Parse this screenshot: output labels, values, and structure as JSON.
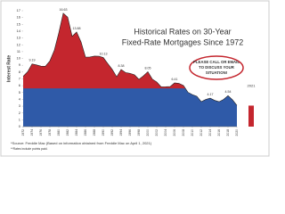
{
  "chart_data": {
    "type": "area",
    "title_lines": [
      "Historical Rates on 30-Year",
      "Fixed-Rate Mortgages Since 1972"
    ],
    "y_label": "Interest Rate",
    "annotation_lines": [
      "PLEASE CALL OR EMAIL",
      "TO DISCUSS YOUR",
      "SITUATION!"
    ],
    "notes": [
      "*Source: Freddie Mac (Based on information obtained from Freddie Mac on April 1, 2021)",
      "**Rates include points paid."
    ],
    "x": [
      1972,
      1973,
      1974,
      1975,
      1976,
      1977,
      1978,
      1979,
      1980,
      1981,
      1982,
      1983,
      1984,
      1985,
      1986,
      1987,
      1988,
      1989,
      1990,
      1991,
      1992,
      1993,
      1994,
      1995,
      1996,
      1997,
      1998,
      1999,
      2000,
      2001,
      2002,
      2003,
      2004,
      2005,
      2006,
      2007,
      2008,
      2009,
      2010,
      2011,
      2012,
      2013,
      2014,
      2015,
      2016,
      2017,
      2018,
      2019,
      2020
    ],
    "values": [
      7.38,
      8.04,
      9.19,
      9.05,
      8.87,
      8.85,
      9.64,
      11.2,
      13.74,
      16.63,
      16.04,
      13.24,
      13.88,
      12.43,
      10.19,
      10.21,
      10.34,
      10.32,
      10.13,
      9.25,
      8.39,
      7.31,
      8.38,
      7.93,
      7.81,
      7.6,
      6.94,
      7.44,
      8.05,
      6.97,
      6.54,
      5.83,
      5.84,
      5.87,
      6.41,
      6.34,
      6.03,
      5.04,
      4.69,
      4.45,
      3.66,
      3.98,
      4.17,
      3.85,
      3.65,
      3.99,
      4.54,
      3.94,
      3.11
    ],
    "value_labels": [
      null,
      null,
      "9.19",
      null,
      null,
      null,
      null,
      null,
      null,
      "16.63",
      null,
      null,
      "13.88",
      null,
      null,
      null,
      null,
      null,
      "10.13",
      null,
      null,
      null,
      "8.38",
      null,
      null,
      null,
      null,
      null,
      "8.05",
      null,
      null,
      null,
      null,
      null,
      "6.41",
      null,
      null,
      null,
      null,
      null,
      null,
      null,
      "4.17",
      null,
      null,
      null,
      "4.54",
      null,
      null
    ],
    "colors": {
      "upper": "#c4262e",
      "lower": "#2f5aa8"
    },
    "highlight": {
      "label": "2021",
      "value": 3.08,
      "color": "#c4262e"
    },
    "xlim": [
      1972,
      2020
    ],
    "xticks": [
      1972,
      1974,
      1976,
      1978,
      1980,
      1982,
      1984,
      1986,
      1988,
      1990,
      1992,
      1994,
      1996,
      1998,
      2000,
      2002,
      2004,
      2006,
      2008,
      2010,
      2012,
      2014,
      2016,
      2018,
      2020
    ],
    "ylim": [
      0,
      17
    ],
    "yticks": [
      0,
      1,
      2,
      3,
      4,
      5,
      6,
      7,
      8,
      9,
      10,
      11,
      12,
      13,
      14,
      15,
      16,
      17
    ]
  }
}
